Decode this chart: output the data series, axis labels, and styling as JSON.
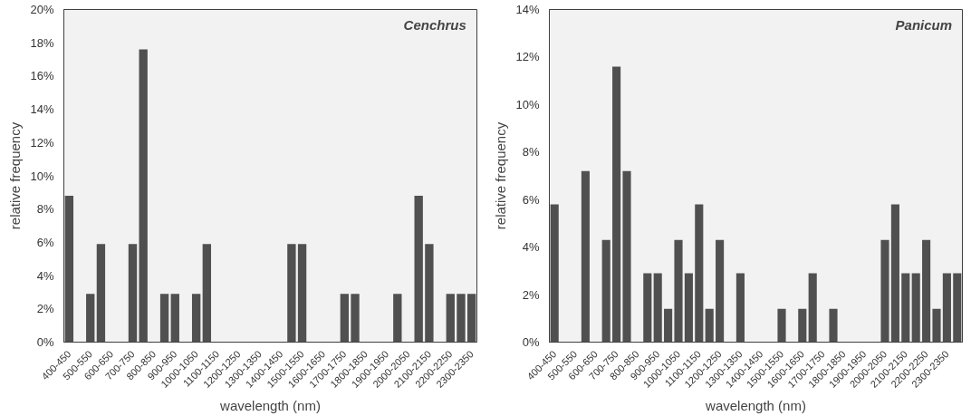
{
  "chart_data": [
    {
      "type": "bar",
      "annotations": [
        "Cenchrus"
      ],
      "xlabel": "wavelength (nm)",
      "ylabel": "relative frequency",
      "categories": [
        "400-450",
        null,
        "500-550",
        null,
        "600-650",
        null,
        "700-750",
        null,
        "800-850",
        null,
        "900-950",
        null,
        "1000-1050",
        null,
        "1100-1150",
        null,
        "1200-1250",
        null,
        "1300-1350",
        null,
        "1400-1450",
        null,
        "1500-1550",
        null,
        "1600-1650",
        null,
        "1700-1750",
        null,
        "1800-1850",
        null,
        "1900-1950",
        null,
        "2000-2050",
        null,
        "2100-2150",
        null,
        "2200-2250",
        null,
        "2300-2350"
      ],
      "values": [
        8.8,
        0,
        2.9,
        5.9,
        0,
        0,
        5.9,
        17.6,
        0,
        2.9,
        2.9,
        0,
        2.9,
        5.9,
        0,
        0,
        0,
        0,
        0,
        0,
        0,
        5.9,
        5.9,
        0,
        0,
        0,
        2.9,
        2.9,
        0,
        0,
        0,
        2.9,
        0,
        8.8,
        5.9,
        0,
        2.9,
        2.9,
        2.9
      ],
      "color": "#505050",
      "ylim": [
        0,
        20
      ],
      "yticks": [
        {
          "value": 0,
          "label": "0%"
        },
        {
          "value": 2,
          "label": "2%"
        },
        {
          "value": 4,
          "label": "4%"
        },
        {
          "value": 6,
          "label": "6%"
        },
        {
          "value": 8,
          "label": "8%"
        },
        {
          "value": 10,
          "label": "10%"
        },
        {
          "value": 12,
          "label": "12%"
        },
        {
          "value": 14,
          "label": "14%"
        },
        {
          "value": 16,
          "label": "16%"
        },
        {
          "value": 18,
          "label": "18%"
        },
        {
          "value": 20,
          "label": "20%"
        }
      ],
      "grid": false
    },
    {
      "type": "bar",
      "annotations": [
        "Panicum"
      ],
      "xlabel": "wavelength (nm)",
      "ylabel": "relative frequency",
      "categories": [
        "400-450",
        null,
        "500-550",
        null,
        "600-650",
        null,
        "700-750",
        null,
        "800-850",
        null,
        "900-950",
        null,
        "1000-1050",
        null,
        "1100-1150",
        null,
        "1200-1250",
        null,
        "1300-1350",
        null,
        "1400-1450",
        null,
        "1500-1550",
        null,
        "1600-1650",
        null,
        "1700-1750",
        null,
        "1800-1850",
        null,
        "1900-1950",
        null,
        "2000-2050",
        null,
        "2100-2150",
        null,
        "2200-2250",
        null,
        "2300-2350",
        null
      ],
      "values": [
        5.8,
        0,
        0,
        7.2,
        0,
        4.3,
        11.6,
        7.2,
        0,
        2.9,
        2.9,
        1.4,
        4.3,
        2.9,
        5.8,
        1.4,
        4.3,
        0,
        2.9,
        0,
        0,
        0,
        1.4,
        0,
        1.4,
        2.9,
        0,
        1.4,
        0,
        0,
        0,
        0,
        4.3,
        5.8,
        2.9,
        2.9,
        4.3,
        1.4,
        2.9,
        2.9
      ],
      "color": "#505050",
      "ylim": [
        0,
        14
      ],
      "yticks": [
        {
          "value": 0,
          "label": "0%"
        },
        {
          "value": 2,
          "label": "2%"
        },
        {
          "value": 4,
          "label": "4%"
        },
        {
          "value": 6,
          "label": "6%"
        },
        {
          "value": 8,
          "label": "8%"
        },
        {
          "value": 10,
          "label": "10%"
        },
        {
          "value": 12,
          "label": "12%"
        },
        {
          "value": 14,
          "label": "14%"
        }
      ],
      "grid": false
    }
  ]
}
